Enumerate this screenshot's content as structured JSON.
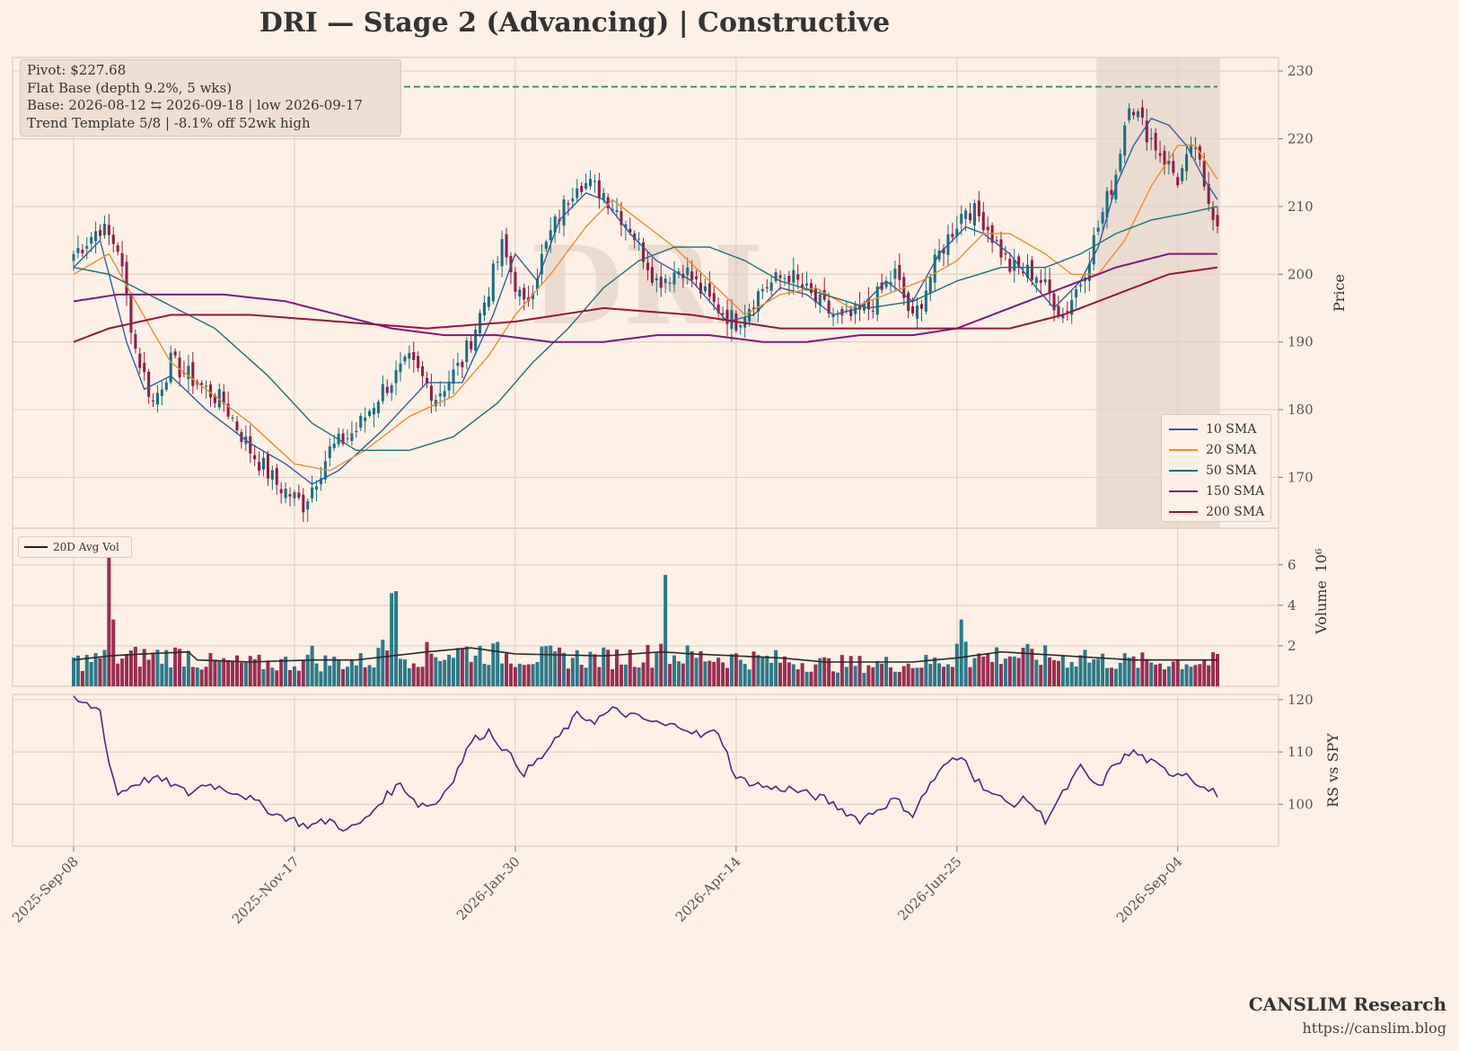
{
  "title": "DRI  —  Stage 2 (Advancing)  |  Constructive",
  "watermark": "DRI",
  "info_box": {
    "line1": "Pivot: $227.68",
    "line2": "Flat Base  (depth 9.2%, 5 wks)",
    "line3": "Base: 2026-08-12 ⇆ 2026-09-18  |  low 2026-09-17",
    "line4": "Trend Template 5/8  |  -8.1% off 52wk high"
  },
  "footer": {
    "brand": "CANSLIM Research",
    "url": "https://canslim.blog"
  },
  "legend_main": [
    {
      "label": "10 SMA",
      "color": "#2d5f9e"
    },
    {
      "label": "20 SMA",
      "color": "#f28a30"
    },
    {
      "label": "50 SMA",
      "color": "#17707a"
    },
    {
      "label": "150 SMA",
      "color": "#7b1a7e"
    },
    {
      "label": "200 SMA",
      "color": "#9b1238"
    }
  ],
  "legend_volume": [
    {
      "label": "20D Avg Vol",
      "color": "#222222"
    }
  ],
  "colors": {
    "up": "#1a6f80",
    "down": "#8f1d47",
    "pivot": "#1a8a3c",
    "rs": "#4a2a80",
    "base_shade": "#e8d8cc",
    "grid": "#e2d2c6"
  },
  "chart_data": [
    {
      "type": "candlestick",
      "ylabel": "Price",
      "ylim": [
        162.5,
        232
      ],
      "yticks": [
        170,
        180,
        190,
        200,
        210,
        220,
        230
      ],
      "x_tick_labels": [
        "2025-Sep-08",
        "2025-Nov-17",
        "2026-Jan-30",
        "2026-Apr-14",
        "2026-Jun-25",
        "2026-Sep-04"
      ],
      "x_tick_index": [
        0,
        50,
        100,
        150,
        200,
        250
      ],
      "n_bars": 260,
      "pivot_line": 227.68,
      "base_shade_index": [
        232,
        260
      ],
      "watermark": "DRI",
      "price_anchors": [
        [
          0,
          203
        ],
        [
          6,
          207
        ],
        [
          10,
          204
        ],
        [
          14,
          189
        ],
        [
          18,
          181
        ],
        [
          22,
          187
        ],
        [
          28,
          184
        ],
        [
          34,
          181
        ],
        [
          40,
          174
        ],
        [
          46,
          169
        ],
        [
          52,
          166
        ],
        [
          58,
          174
        ],
        [
          64,
          177
        ],
        [
          70,
          183
        ],
        [
          76,
          187
        ],
        [
          82,
          182
        ],
        [
          88,
          187
        ],
        [
          92,
          194
        ],
        [
          97,
          204
        ],
        [
          102,
          195
        ],
        [
          108,
          206
        ],
        [
          114,
          214
        ],
        [
          120,
          212
        ],
        [
          126,
          207
        ],
        [
          132,
          199
        ],
        [
          138,
          201
        ],
        [
          144,
          196
        ],
        [
          150,
          193
        ],
        [
          156,
          198
        ],
        [
          162,
          200
        ],
        [
          168,
          196
        ],
        [
          174,
          193
        ],
        [
          180,
          195
        ],
        [
          186,
          200
        ],
        [
          190,
          193
        ],
        [
          196,
          203
        ],
        [
          202,
          210
        ],
        [
          206,
          208
        ],
        [
          212,
          201
        ],
        [
          218,
          200
        ],
        [
          224,
          194
        ],
        [
          228,
          199
        ],
        [
          232,
          207
        ],
        [
          236,
          215
        ],
        [
          239,
          226
        ],
        [
          242,
          222
        ],
        [
          246,
          218
        ],
        [
          250,
          214
        ],
        [
          254,
          219
        ],
        [
          256,
          212
        ],
        [
          259,
          208
        ]
      ],
      "sma": {
        "10 SMA": [
          [
            0,
            201
          ],
          [
            6,
            205
          ],
          [
            12,
            190
          ],
          [
            16,
            183
          ],
          [
            22,
            185
          ],
          [
            30,
            180
          ],
          [
            40,
            175
          ],
          [
            48,
            172
          ],
          [
            54,
            169
          ],
          [
            60,
            171
          ],
          [
            70,
            177
          ],
          [
            80,
            184
          ],
          [
            88,
            184
          ],
          [
            95,
            194
          ],
          [
            100,
            203
          ],
          [
            105,
            199
          ],
          [
            110,
            208
          ],
          [
            116,
            212
          ],
          [
            120,
            211
          ],
          [
            126,
            206
          ],
          [
            132,
            202
          ],
          [
            140,
            199
          ],
          [
            148,
            193
          ],
          [
            154,
            194
          ],
          [
            160,
            198
          ],
          [
            166,
            197
          ],
          [
            172,
            194
          ],
          [
            178,
            195
          ],
          [
            184,
            199
          ],
          [
            190,
            196
          ],
          [
            196,
            203
          ],
          [
            202,
            207
          ],
          [
            206,
            206
          ],
          [
            212,
            203
          ],
          [
            218,
            198
          ],
          [
            222,
            195
          ],
          [
            228,
            199
          ],
          [
            232,
            204
          ],
          [
            236,
            213
          ],
          [
            240,
            219
          ],
          [
            244,
            223
          ],
          [
            248,
            222
          ],
          [
            252,
            219
          ],
          [
            256,
            214
          ],
          [
            259,
            211
          ]
        ],
        "20 SMA": [
          [
            0,
            200
          ],
          [
            8,
            203
          ],
          [
            14,
            196
          ],
          [
            22,
            187
          ],
          [
            30,
            183
          ],
          [
            40,
            178
          ],
          [
            50,
            172
          ],
          [
            58,
            171
          ],
          [
            66,
            174
          ],
          [
            76,
            179
          ],
          [
            86,
            182
          ],
          [
            94,
            188
          ],
          [
            100,
            194
          ],
          [
            108,
            200
          ],
          [
            116,
            207
          ],
          [
            122,
            211
          ],
          [
            128,
            208
          ],
          [
            136,
            204
          ],
          [
            144,
            199
          ],
          [
            152,
            194
          ],
          [
            160,
            197
          ],
          [
            168,
            198
          ],
          [
            176,
            195
          ],
          [
            184,
            197
          ],
          [
            192,
            199
          ],
          [
            200,
            202
          ],
          [
            206,
            206
          ],
          [
            212,
            206
          ],
          [
            220,
            203
          ],
          [
            226,
            200
          ],
          [
            232,
            200
          ],
          [
            238,
            205
          ],
          [
            244,
            213
          ],
          [
            250,
            219
          ],
          [
            254,
            219
          ],
          [
            259,
            214
          ]
        ],
        "50 SMA": [
          [
            0,
            201
          ],
          [
            8,
            200
          ],
          [
            20,
            196
          ],
          [
            32,
            192
          ],
          [
            44,
            185
          ],
          [
            54,
            178
          ],
          [
            64,
            174
          ],
          [
            76,
            174
          ],
          [
            86,
            176
          ],
          [
            96,
            181
          ],
          [
            104,
            187
          ],
          [
            112,
            192
          ],
          [
            120,
            198
          ],
          [
            128,
            202
          ],
          [
            136,
            204
          ],
          [
            144,
            204
          ],
          [
            152,
            202
          ],
          [
            160,
            199
          ],
          [
            170,
            197
          ],
          [
            180,
            195
          ],
          [
            190,
            196
          ],
          [
            200,
            199
          ],
          [
            210,
            201
          ],
          [
            220,
            201
          ],
          [
            228,
            203
          ],
          [
            236,
            206
          ],
          [
            244,
            208
          ],
          [
            252,
            209
          ],
          [
            259,
            210
          ]
        ],
        "150 SMA": [
          [
            0,
            196
          ],
          [
            10,
            197
          ],
          [
            20,
            197
          ],
          [
            34,
            197
          ],
          [
            48,
            196
          ],
          [
            60,
            194
          ],
          [
            72,
            192
          ],
          [
            84,
            191
          ],
          [
            96,
            191
          ],
          [
            108,
            190
          ],
          [
            120,
            190
          ],
          [
            132,
            191
          ],
          [
            144,
            191
          ],
          [
            156,
            190
          ],
          [
            166,
            190
          ],
          [
            178,
            191
          ],
          [
            190,
            191
          ],
          [
            200,
            192
          ],
          [
            212,
            195
          ],
          [
            224,
            198
          ],
          [
            236,
            201
          ],
          [
            248,
            203
          ],
          [
            252,
            203
          ],
          [
            259,
            203
          ]
        ],
        "200 SMA": [
          [
            0,
            190
          ],
          [
            8,
            192
          ],
          [
            22,
            194
          ],
          [
            40,
            194
          ],
          [
            60,
            193
          ],
          [
            80,
            192
          ],
          [
            100,
            193
          ],
          [
            120,
            195
          ],
          [
            140,
            194
          ],
          [
            160,
            192
          ],
          [
            180,
            192
          ],
          [
            200,
            192
          ],
          [
            212,
            192
          ],
          [
            224,
            194
          ],
          [
            236,
            197
          ],
          [
            248,
            200
          ],
          [
            259,
            201
          ]
        ]
      }
    },
    {
      "type": "bar",
      "ylabel": "Volume",
      "y_exponent_label": "10⁶",
      "ylim": [
        0,
        6.3
      ],
      "yticks": [
        2,
        4,
        6
      ],
      "avg_label": "20D Avg Vol",
      "baseline_millions": 1.25,
      "spikes_millions": [
        [
          8,
          6.4
        ],
        [
          9,
          3.3
        ],
        [
          72,
          4.6
        ],
        [
          73,
          4.7
        ],
        [
          134,
          5.5
        ],
        [
          133,
          2.1
        ],
        [
          200,
          2.1
        ],
        [
          201,
          3.3
        ],
        [
          202,
          2.2
        ],
        [
          69,
          1.9
        ],
        [
          70,
          2.3
        ],
        [
          54,
          2.0
        ],
        [
          229,
          1.8
        ],
        [
          259,
          1.6
        ]
      ],
      "avg_anchors": [
        [
          0,
          1.3
        ],
        [
          8,
          1.5
        ],
        [
          16,
          1.6
        ],
        [
          26,
          1.7
        ],
        [
          28,
          1.3
        ],
        [
          40,
          1.2
        ],
        [
          54,
          1.3
        ],
        [
          64,
          1.3
        ],
        [
          72,
          1.5
        ],
        [
          80,
          1.7
        ],
        [
          90,
          1.9
        ],
        [
          100,
          1.6
        ],
        [
          120,
          1.5
        ],
        [
          133,
          1.7
        ],
        [
          140,
          1.6
        ],
        [
          150,
          1.5
        ],
        [
          160,
          1.4
        ],
        [
          170,
          1.2
        ],
        [
          190,
          1.2
        ],
        [
          200,
          1.4
        ],
        [
          210,
          1.7
        ],
        [
          225,
          1.5
        ],
        [
          240,
          1.3
        ],
        [
          250,
          1.3
        ],
        [
          259,
          1.3
        ]
      ]
    },
    {
      "type": "line",
      "ylabel": "RS vs SPY",
      "ylim": [
        92,
        121
      ],
      "yticks": [
        100,
        110,
        120
      ],
      "points": [
        [
          0,
          120
        ],
        [
          6,
          118
        ],
        [
          8,
          108
        ],
        [
          10,
          102
        ],
        [
          14,
          104
        ],
        [
          18,
          105
        ],
        [
          22,
          104
        ],
        [
          26,
          102
        ],
        [
          30,
          104
        ],
        [
          34,
          103
        ],
        [
          38,
          102
        ],
        [
          42,
          100
        ],
        [
          46,
          98
        ],
        [
          50,
          97
        ],
        [
          52,
          96
        ],
        [
          54,
          96
        ],
        [
          58,
          97
        ],
        [
          62,
          95
        ],
        [
          66,
          97
        ],
        [
          70,
          101
        ],
        [
          74,
          104
        ],
        [
          78,
          100
        ],
        [
          82,
          100
        ],
        [
          86,
          105
        ],
        [
          90,
          112
        ],
        [
          94,
          114
        ],
        [
          98,
          110
        ],
        [
          102,
          106
        ],
        [
          106,
          109
        ],
        [
          110,
          113
        ],
        [
          114,
          117
        ],
        [
          118,
          116
        ],
        [
          122,
          118
        ],
        [
          126,
          117
        ],
        [
          130,
          116
        ],
        [
          134,
          115
        ],
        [
          138,
          115
        ],
        [
          142,
          113
        ],
        [
          146,
          114
        ],
        [
          150,
          105
        ],
        [
          154,
          104
        ],
        [
          158,
          103
        ],
        [
          162,
          103
        ],
        [
          166,
          102
        ],
        [
          170,
          101
        ],
        [
          174,
          99
        ],
        [
          178,
          97
        ],
        [
          182,
          99
        ],
        [
          186,
          101
        ],
        [
          190,
          98
        ],
        [
          194,
          104
        ],
        [
          198,
          108
        ],
        [
          202,
          109
        ],
        [
          204,
          105
        ],
        [
          208,
          102
        ],
        [
          212,
          100
        ],
        [
          216,
          101
        ],
        [
          220,
          97
        ],
        [
          224,
          102
        ],
        [
          228,
          107
        ],
        [
          232,
          103
        ],
        [
          236,
          108
        ],
        [
          240,
          110
        ],
        [
          244,
          108
        ],
        [
          248,
          106
        ],
        [
          252,
          106
        ],
        [
          256,
          103
        ],
        [
          259,
          102
        ]
      ]
    }
  ]
}
